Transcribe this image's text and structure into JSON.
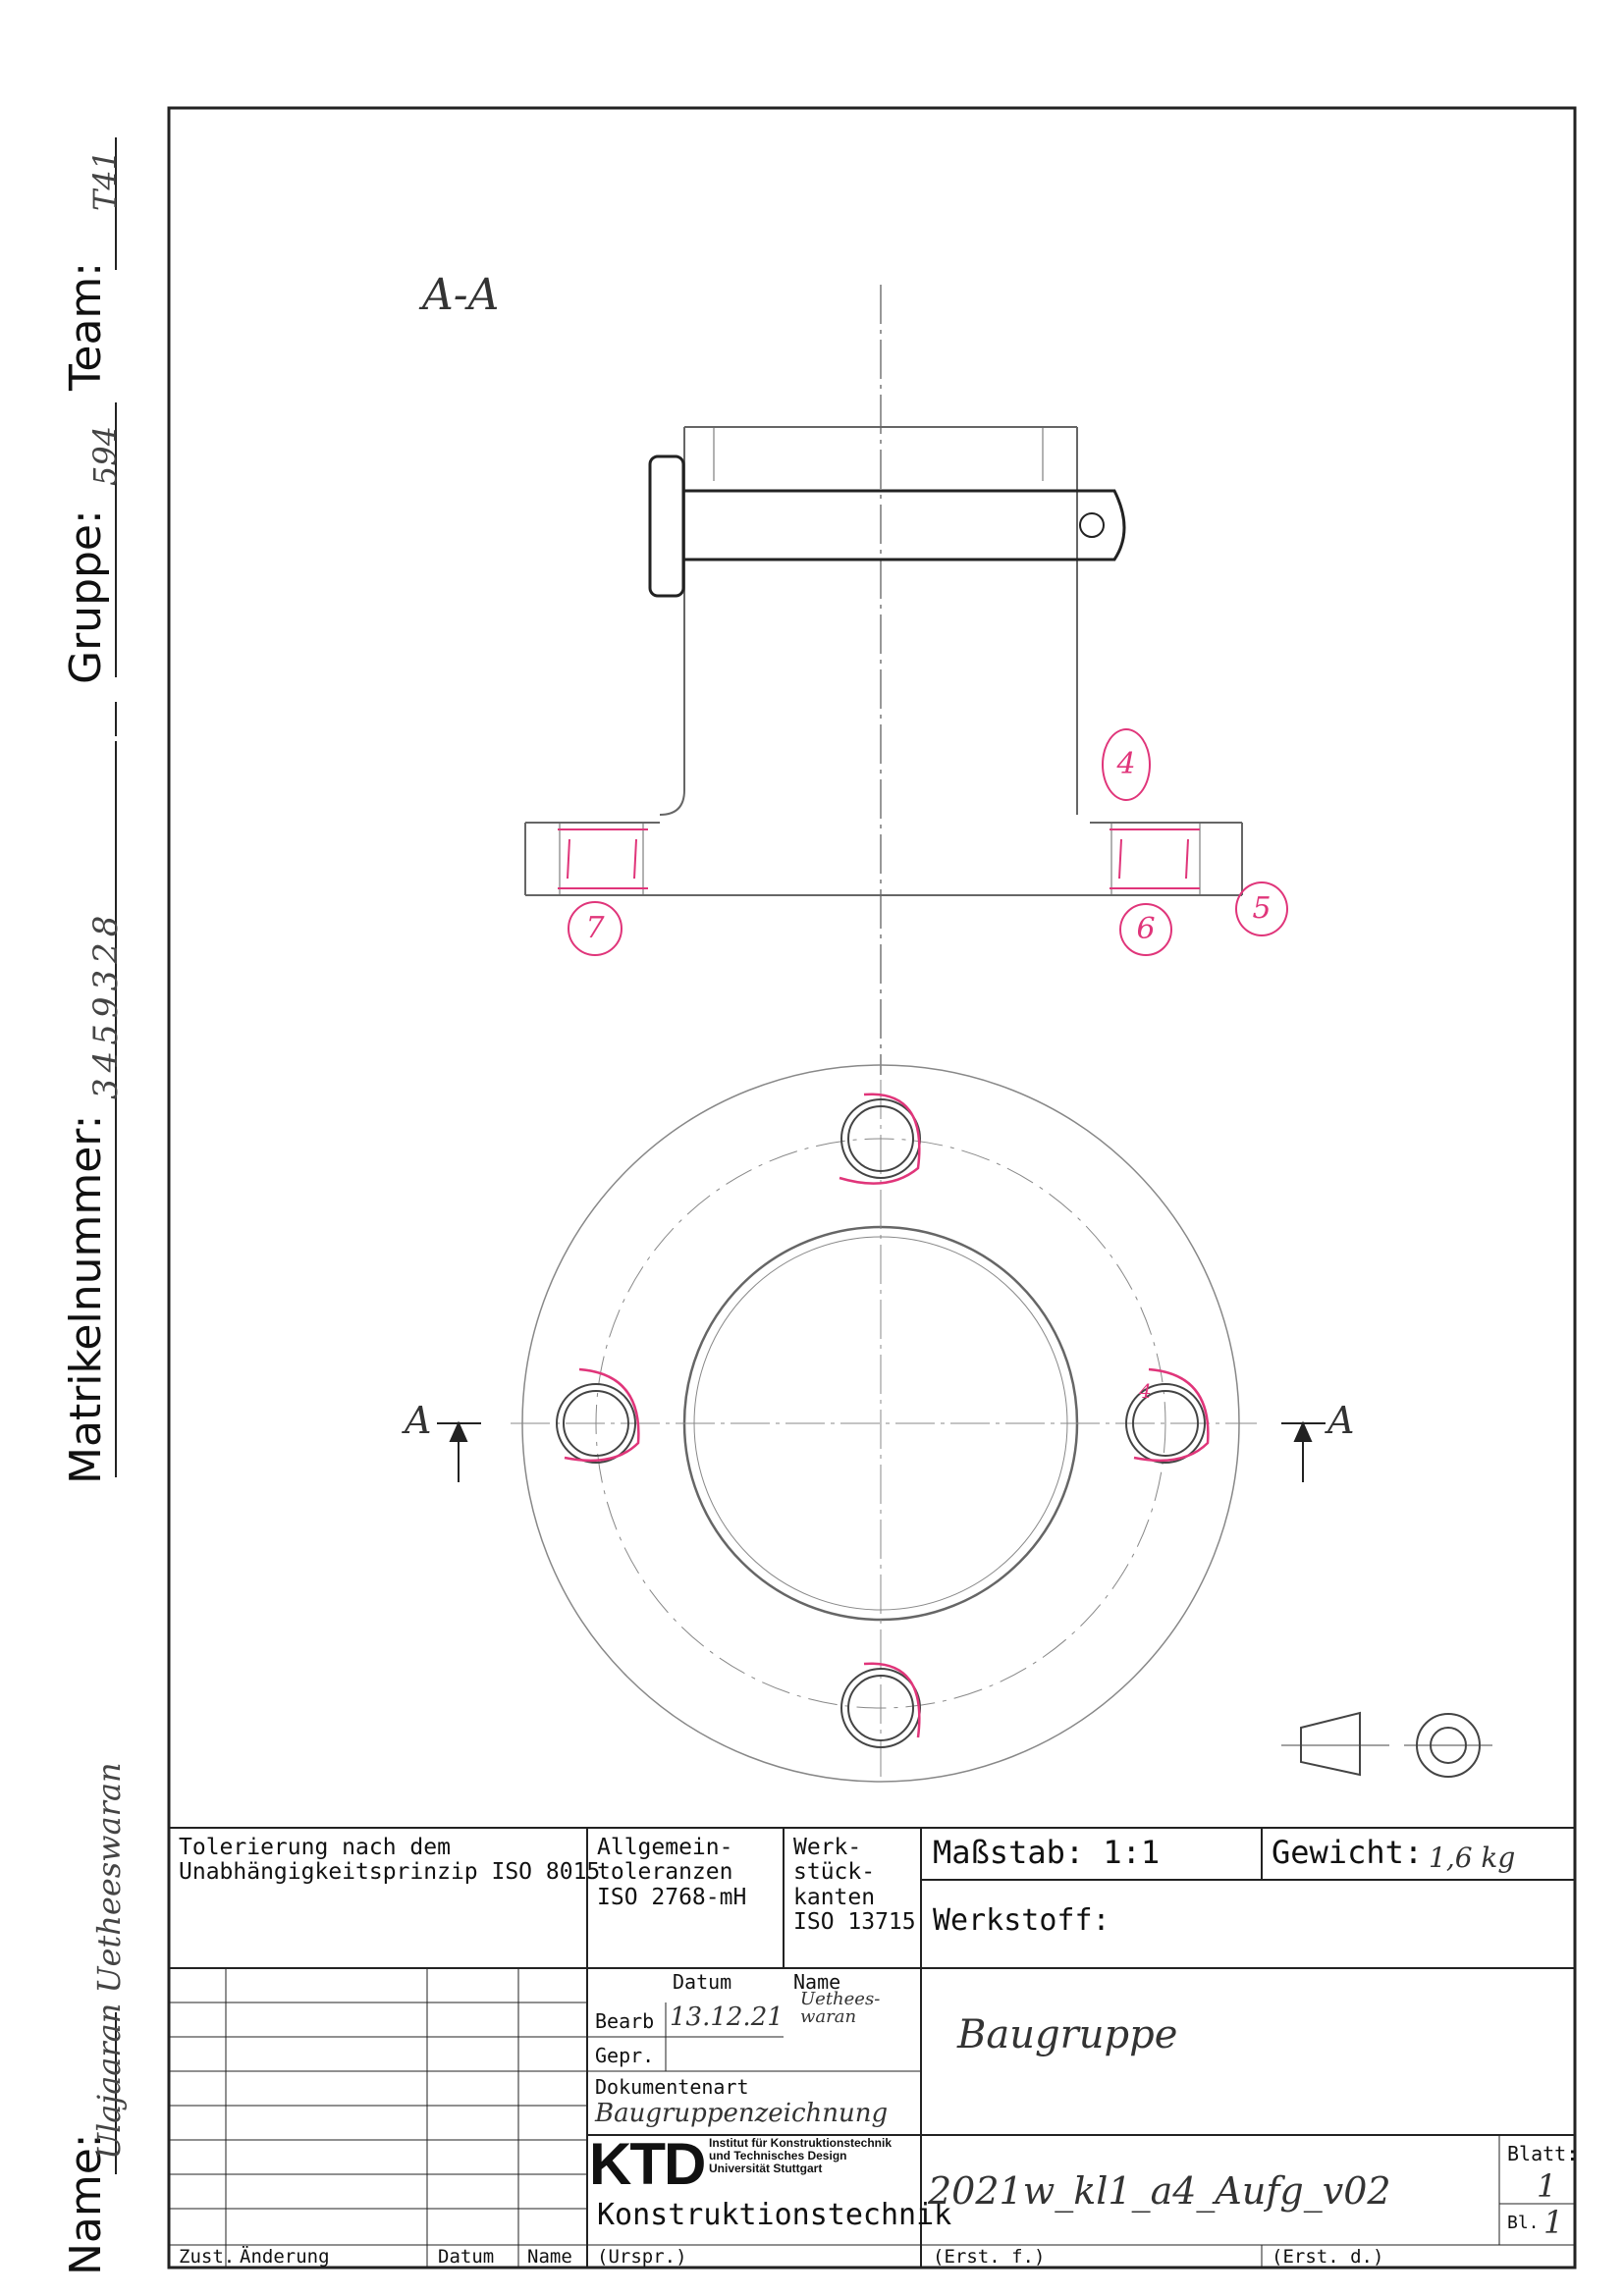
{
  "side_labels": {
    "name_label": "Name:",
    "name_value": "Ulajaaran  Uetheeswaran",
    "matrikel_label": "Matrikelnummer:",
    "matrikel_value": "3459328",
    "gruppe_label": "Gruppe:",
    "gruppe_value": "594",
    "team_label": "Team:",
    "team_value": "T41"
  },
  "drawing": {
    "section_title": "A-A",
    "section_marker_left": "A",
    "section_marker_right": "A",
    "balloons": [
      "4",
      "7",
      "6",
      "5"
    ],
    "hole_note": "4"
  },
  "title_block": {
    "tolerance_note": "Tolerierung nach dem\nUnabhängigkeitsprinzip ISO 8015",
    "general_tol": "Allgemein-\ntoleranzen\nISO 2768-mH",
    "edges": "Werk-\nstück-\nkanten\nISO 13715",
    "scale_label": "Maßstab: 1:1",
    "weight_label": "Gewicht:",
    "weight_value": "1,6 kg",
    "material_label": "Werkstoff:",
    "datum_header": "Datum",
    "name_header": "Name",
    "bearb_label": "Bearb",
    "bearb_date": "13.12.21",
    "bearb_name": "Uethees-\nwaran",
    "gepr_label": "Gepr.",
    "doc_type_label": "Dokumentenart",
    "doc_type_value": "Baugruppenzeichnung",
    "title_value": "Baugruppe",
    "logo_text": "KTD",
    "institute_lines": "Institut für Konstruktionstechnik\nund Technisches Design\nUniversität Stuttgart",
    "dept": "Konstruktionstechnik",
    "drawing_number": "2021w_kl1_a4_Aufg_v02",
    "blatt_label": "Blatt:",
    "blatt_value": "1",
    "bl_label": "Bl.",
    "bl_value": "1",
    "zust_label": "Zust.",
    "aenderung_label": "Änderung",
    "datum_label": "Datum",
    "name_label": "Name",
    "urspr_label": "(Urspr.)",
    "erst_f_label": "(Erst. f.)",
    "erst_d_label": "(Erst. d.)"
  }
}
